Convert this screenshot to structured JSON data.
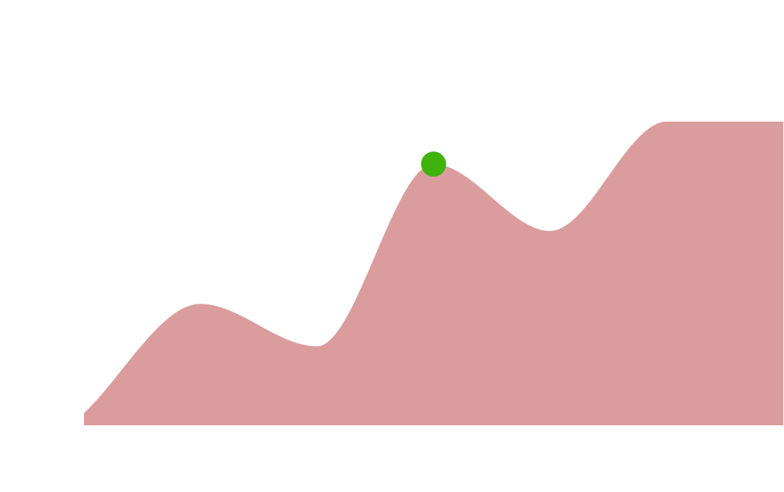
{
  "chart_data": {
    "type": "area",
    "x": [
      0,
      1,
      2,
      3,
      4,
      5,
      6
    ],
    "values": [
      4,
      40,
      26,
      86,
      64,
      100,
      100
    ],
    "ylim": [
      0,
      100
    ],
    "xlim": [
      0,
      6
    ],
    "grid": false,
    "colors": {
      "area": "#DB9C9D",
      "highlight": "#3FB20D"
    },
    "highlight": {
      "x": 3,
      "y": 86
    }
  }
}
